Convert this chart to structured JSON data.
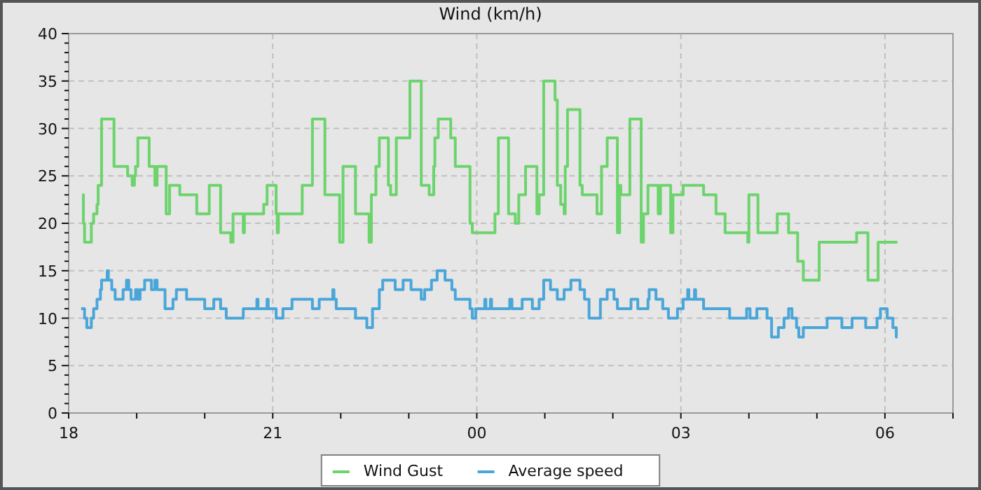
{
  "chart_data": {
    "type": "step",
    "title": "Wind (km/h)",
    "xlim": [
      "2000-01-01T18:00",
      "2000-01-02T07:00"
    ],
    "xticks": [
      {
        "value": "2000-01-01T18:00",
        "label": "18"
      },
      {
        "value": "2000-01-01T19:00",
        "label": null
      },
      {
        "value": "2000-01-01T20:00",
        "label": null
      },
      {
        "value": "2000-01-01T21:00",
        "label": "21"
      },
      {
        "value": "2000-01-01T22:00",
        "label": null
      },
      {
        "value": "2000-01-01T23:00",
        "label": null
      },
      {
        "value": "2000-01-02T00:00",
        "label": "00"
      },
      {
        "value": "2000-01-02T01:00",
        "label": null
      },
      {
        "value": "2000-01-02T02:00",
        "label": null
      },
      {
        "value": "2000-01-02T03:00",
        "label": "03"
      },
      {
        "value": "2000-01-02T04:00",
        "label": null
      },
      {
        "value": "2000-01-02T05:00",
        "label": null
      },
      {
        "value": "2000-01-02T06:00",
        "label": "06"
      },
      {
        "value": "2000-01-02T07:00",
        "label": null
      }
    ],
    "ylim": [
      0,
      40
    ],
    "yticks": [
      0,
      {
        "value": 1,
        "label": null
      },
      {
        "value": 2,
        "label": null
      },
      {
        "value": 3,
        "label": null
      },
      {
        "value": 4,
        "label": null
      },
      5,
      {
        "value": 6,
        "label": null
      },
      {
        "value": 7,
        "label": null
      },
      {
        "value": 8,
        "label": null
      },
      {
        "value": 9,
        "label": null
      },
      10,
      {
        "value": 11,
        "label": null
      },
      {
        "value": 12,
        "label": null
      },
      {
        "value": 13,
        "label": null
      },
      {
        "value": 14,
        "label": null
      },
      15,
      {
        "value": 16,
        "label": null
      },
      {
        "value": 17,
        "label": null
      },
      {
        "value": 18,
        "label": null
      },
      {
        "value": 19,
        "label": null
      },
      20,
      {
        "value": 21,
        "label": null
      },
      {
        "value": 22,
        "label": null
      },
      {
        "value": 23,
        "label": null
      },
      {
        "value": 24,
        "label": null
      },
      25,
      {
        "value": 26,
        "label": null
      },
      {
        "value": 27,
        "label": null
      },
      {
        "value": 28,
        "label": null
      },
      {
        "value": 29,
        "label": null
      },
      30,
      {
        "value": 31,
        "label": null
      },
      {
        "value": 32,
        "label": null
      },
      {
        "value": 33,
        "label": null
      },
      {
        "value": 34,
        "label": null
      },
      35,
      {
        "value": 36,
        "label": null
      },
      {
        "value": 37,
        "label": null
      },
      {
        "value": 38,
        "label": null
      },
      {
        "value": 39,
        "label": null
      },
      40
    ],
    "grid": true,
    "legend": "bottom",
    "marker": "none",
    "line_style": "solid",
    "series": [
      {
        "name": "Wind Gust",
        "color": "#6dd46d",
        "x": [
          "2000-01-01T18:12",
          "2000-01-01T18:13",
          "2000-01-01T18:14",
          "2000-01-01T18:20",
          "2000-01-01T18:22",
          "2000-01-01T18:25",
          "2000-01-01T18:26",
          "2000-01-01T18:29",
          "2000-01-01T18:40",
          "2000-01-01T18:52",
          "2000-01-01T18:56",
          "2000-01-01T18:58",
          "2000-01-01T18:59",
          "2000-01-01T19:01",
          "2000-01-01T19:11",
          "2000-01-01T19:16",
          "2000-01-01T19:18",
          "2000-01-01T19:26",
          "2000-01-01T19:29",
          "2000-01-01T19:38",
          "2000-01-01T19:53",
          "2000-01-01T20:04",
          "2000-01-01T20:14",
          "2000-01-01T20:23",
          "2000-01-01T20:25",
          "2000-01-01T20:34",
          "2000-01-01T20:35",
          "2000-01-01T20:52",
          "2000-01-01T20:55",
          "2000-01-01T21:03",
          "2000-01-01T21:04",
          "2000-01-01T21:05",
          "2000-01-01T21:26",
          "2000-01-01T21:35",
          "2000-01-01T21:46",
          "2000-01-01T21:59",
          "2000-01-01T22:02",
          "2000-01-01T22:13",
          "2000-01-01T22:25",
          "2000-01-01T22:27",
          "2000-01-01T22:31",
          "2000-01-01T22:34",
          "2000-01-01T22:42",
          "2000-01-01T22:44",
          "2000-01-01T22:49",
          "2000-01-01T23:01",
          "2000-01-01T23:11",
          "2000-01-01T23:18",
          "2000-01-01T23:22",
          "2000-01-01T23:23",
          "2000-01-01T23:26",
          "2000-01-01T23:37",
          "2000-01-01T23:41",
          "2000-01-01T23:54",
          "2000-01-01T23:56",
          "2000-01-02T00:16",
          "2000-01-02T00:19",
          "2000-01-02T00:28",
          "2000-01-02T00:34",
          "2000-01-02T00:37",
          "2000-01-02T00:43",
          "2000-01-02T00:53",
          "2000-01-02T00:55",
          "2000-01-02T00:59",
          "2000-01-02T01:09",
          "2000-01-02T01:11",
          "2000-01-02T01:14",
          "2000-01-02T01:17",
          "2000-01-02T01:18",
          "2000-01-02T01:20",
          "2000-01-02T01:31",
          "2000-01-02T01:33",
          "2000-01-02T01:46",
          "2000-01-02T01:50",
          "2000-01-02T01:55",
          "2000-01-02T02:04",
          "2000-01-02T02:06",
          "2000-01-02T02:07",
          "2000-01-02T02:15",
          "2000-01-02T02:25",
          "2000-01-02T02:27",
          "2000-01-02T02:31",
          "2000-01-02T02:40",
          "2000-01-02T02:42",
          "2000-01-02T02:51",
          "2000-01-02T02:53",
          "2000-01-02T03:02",
          "2000-01-02T03:20",
          "2000-01-02T03:31",
          "2000-01-02T03:39",
          "2000-01-02T03:59",
          "2000-01-02T04:00",
          "2000-01-02T04:08",
          "2000-01-02T04:25",
          "2000-01-02T04:35",
          "2000-01-02T04:43",
          "2000-01-02T04:48",
          "2000-01-02T05:02",
          "2000-01-02T05:35",
          "2000-01-02T05:45",
          "2000-01-02T05:54",
          "2000-01-02T06:11"
        ],
        "values": [
          23,
          20,
          18,
          20,
          21,
          22,
          24,
          31,
          26,
          25,
          24,
          25,
          26,
          29,
          26,
          24,
          26,
          21,
          24,
          23,
          21,
          24,
          19,
          18,
          21,
          19,
          21,
          22,
          24,
          21,
          19,
          21,
          24,
          31,
          23,
          18,
          26,
          21,
          18,
          23,
          26,
          29,
          24,
          23,
          29,
          35,
          24,
          23,
          26,
          29,
          31,
          29,
          26,
          20,
          19,
          21,
          29,
          21,
          20,
          23,
          26,
          21,
          23,
          35,
          33,
          24,
          22,
          21,
          26,
          32,
          24,
          23,
          21,
          26,
          29,
          19,
          24,
          23,
          31,
          18,
          21,
          24,
          21,
          24,
          19,
          23,
          24,
          23,
          21,
          19,
          18,
          23,
          19,
          21,
          19,
          16,
          14,
          18,
          19,
          14,
          18,
          18
        ]
      },
      {
        "name": "Average speed",
        "color": "#4aa6d9",
        "x": [
          "2000-01-01T18:11",
          "2000-01-01T18:14",
          "2000-01-01T18:16",
          "2000-01-01T18:20",
          "2000-01-01T18:22",
          "2000-01-01T18:25",
          "2000-01-01T18:28",
          "2000-01-01T18:29",
          "2000-01-01T18:34",
          "2000-01-01T18:35",
          "2000-01-01T18:38",
          "2000-01-01T18:41",
          "2000-01-01T18:48",
          "2000-01-01T18:51",
          "2000-01-01T18:53",
          "2000-01-01T18:55",
          "2000-01-01T18:59",
          "2000-01-01T19:01",
          "2000-01-01T19:03",
          "2000-01-01T19:07",
          "2000-01-01T19:13",
          "2000-01-01T19:16",
          "2000-01-01T19:18",
          "2000-01-01T19:25",
          "2000-01-01T19:32",
          "2000-01-01T19:35",
          "2000-01-01T19:44",
          "2000-01-01T20:00",
          "2000-01-01T20:08",
          "2000-01-01T20:14",
          "2000-01-01T20:19",
          "2000-01-01T20:34",
          "2000-01-01T20:46",
          "2000-01-01T20:47",
          "2000-01-01T20:55",
          "2000-01-01T20:56",
          "2000-01-01T21:03",
          "2000-01-01T21:09",
          "2000-01-01T21:17",
          "2000-01-01T21:35",
          "2000-01-01T21:41",
          "2000-01-01T21:53",
          "2000-01-01T21:54",
          "2000-01-01T21:56",
          "2000-01-01T22:13",
          "2000-01-01T22:23",
          "2000-01-01T22:28",
          "2000-01-01T22:34",
          "2000-01-01T22:37",
          "2000-01-01T22:48",
          "2000-01-01T22:55",
          "2000-01-01T23:02",
          "2000-01-01T23:11",
          "2000-01-01T23:14",
          "2000-01-01T23:20",
          "2000-01-01T23:25",
          "2000-01-01T23:32",
          "2000-01-01T23:38",
          "2000-01-01T23:41",
          "2000-01-01T23:54",
          "2000-01-01T23:56",
          "2000-01-01T23:59",
          "2000-01-02T00:07",
          "2000-01-02T00:08",
          "2000-01-02T00:12",
          "2000-01-02T00:13",
          "2000-01-02T00:29",
          "2000-01-02T00:31",
          "2000-01-02T00:40",
          "2000-01-02T00:49",
          "2000-01-02T00:55",
          "2000-01-02T00:59",
          "2000-01-02T01:05",
          "2000-01-02T01:11",
          "2000-01-02T01:17",
          "2000-01-02T01:23",
          "2000-01-02T01:31",
          "2000-01-02T01:35",
          "2000-01-02T01:39",
          "2000-01-02T01:49",
          "2000-01-02T01:55",
          "2000-01-02T02:01",
          "2000-01-02T02:04",
          "2000-01-02T02:16",
          "2000-01-02T02:22",
          "2000-01-02T02:31",
          "2000-01-02T02:32",
          "2000-01-02T02:38",
          "2000-01-02T02:44",
          "2000-01-02T02:49",
          "2000-01-02T02:57",
          "2000-01-02T03:02",
          "2000-01-02T03:06",
          "2000-01-02T03:07",
          "2000-01-02T03:12",
          "2000-01-02T03:13",
          "2000-01-02T03:20",
          "2000-01-02T03:43",
          "2000-01-02T03:58",
          "2000-01-02T04:01",
          "2000-01-02T04:07",
          "2000-01-02T04:16",
          "2000-01-02T04:20",
          "2000-01-02T04:26",
          "2000-01-02T04:31",
          "2000-01-02T04:35",
          "2000-01-02T04:38",
          "2000-01-02T04:42",
          "2000-01-02T04:44",
          "2000-01-02T04:48",
          "2000-01-02T05:09",
          "2000-01-02T05:22",
          "2000-01-02T05:31",
          "2000-01-02T05:43",
          "2000-01-02T05:53",
          "2000-01-02T05:56",
          "2000-01-02T06:02",
          "2000-01-02T06:07",
          "2000-01-02T06:10",
          "2000-01-02T06:11"
        ],
        "values": [
          11,
          10,
          9,
          10,
          11,
          12,
          13,
          14,
          15,
          14,
          13,
          12,
          13,
          14,
          13,
          12,
          13,
          12,
          13,
          14,
          13,
          14,
          13,
          11,
          12,
          13,
          12,
          11,
          12,
          11,
          10,
          11,
          12,
          11,
          12,
          11,
          10,
          11,
          12,
          11,
          12,
          13,
          12,
          11,
          10,
          9,
          11,
          13,
          14,
          13,
          14,
          13,
          12,
          13,
          14,
          15,
          14,
          13,
          12,
          11,
          10,
          11,
          12,
          11,
          12,
          11,
          12,
          11,
          12,
          11,
          12,
          14,
          13,
          12,
          13,
          14,
          13,
          12,
          10,
          12,
          13,
          12,
          11,
          12,
          11,
          12,
          13,
          12,
          11,
          10,
          11,
          12,
          13,
          12,
          13,
          12,
          11,
          10,
          11,
          10,
          11,
          10,
          8,
          9,
          10,
          11,
          10,
          9,
          8,
          9,
          10,
          9,
          10,
          9,
          10,
          11,
          10,
          9,
          8,
          8
        ]
      }
    ]
  }
}
